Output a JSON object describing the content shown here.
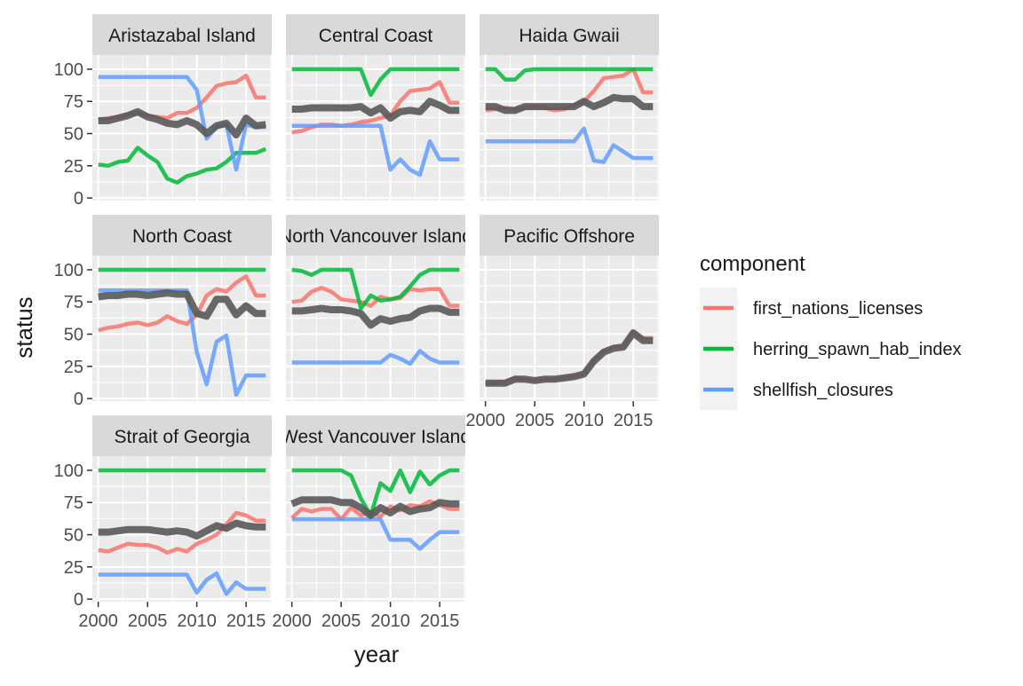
{
  "chart_data": {
    "type": "line",
    "xlabel": "year",
    "ylabel": "status",
    "xlim": [
      1999.4,
      2017.6
    ],
    "ylim": [
      -2,
      111
    ],
    "x_ticks": [
      2000,
      2005,
      2010,
      2015
    ],
    "y_ticks": [
      0,
      25,
      50,
      75,
      100
    ],
    "grid": true,
    "legend": {
      "title": "component",
      "position": "right",
      "entries": [
        {
          "label": "first_nations_licenses",
          "color": "#F8766D"
        },
        {
          "label": "herring_spawn_hab_index",
          "color": "#00BA38"
        },
        {
          "label": "shellfish_closures",
          "color": "#619CFF"
        }
      ]
    },
    "overall_color": "#595959",
    "colors": {
      "panel_bg": "#EBEBEB",
      "strip_bg": "#D9D9D9",
      "grid": "#FFFFFF",
      "text": "#1A1A1A",
      "tick_text": "#4D4D4D"
    },
    "x": [
      2000,
      2001,
      2002,
      2003,
      2004,
      2005,
      2006,
      2007,
      2008,
      2009,
      2010,
      2011,
      2012,
      2013,
      2014,
      2015,
      2016,
      2017
    ],
    "panels": [
      {
        "name": "Aristazabal Island",
        "series": {
          "first_nations_licenses": [
            61,
            62,
            63,
            65,
            66,
            64,
            63,
            62,
            66,
            66,
            70,
            78,
            87,
            89,
            90,
            95,
            78,
            78
          ],
          "herring_spawn_hab_index": [
            26,
            25,
            28,
            29,
            39,
            33,
            28,
            15,
            12,
            17,
            19,
            22,
            23,
            28,
            35,
            35,
            35,
            38
          ],
          "shellfish_closures": [
            94,
            94,
            94,
            94,
            94,
            94,
            94,
            94,
            94,
            94,
            84,
            46,
            55,
            57,
            22,
            57,
            55,
            55
          ],
          "overall": [
            60,
            60,
            62,
            64,
            67,
            63,
            61,
            58,
            57,
            60,
            57,
            50,
            56,
            58,
            49,
            62,
            56,
            57
          ]
        }
      },
      {
        "name": "Central Coast",
        "series": {
          "first_nations_licenses": [
            51,
            52,
            55,
            57,
            57,
            56,
            57,
            59,
            60,
            62,
            64,
            75,
            83,
            84,
            85,
            90,
            74,
            74
          ],
          "herring_spawn_hab_index": [
            100,
            100,
            100,
            100,
            100,
            100,
            100,
            100,
            80,
            92,
            100,
            100,
            100,
            100,
            100,
            100,
            100,
            100
          ],
          "shellfish_closures": [
            56,
            56,
            56,
            56,
            56,
            56,
            56,
            56,
            56,
            56,
            22,
            30,
            22,
            18,
            44,
            30,
            30,
            30
          ],
          "overall": [
            69,
            69,
            70,
            70,
            70,
            70,
            70,
            71,
            66,
            70,
            62,
            67,
            68,
            67,
            75,
            72,
            68,
            68
          ]
        }
      },
      {
        "name": "Haida Gwaii",
        "series": {
          "first_nations_licenses": [
            68,
            69,
            70,
            69,
            70,
            71,
            70,
            68,
            69,
            72,
            75,
            83,
            93,
            94,
            95,
            100,
            82,
            82
          ],
          "herring_spawn_hab_index": [
            100,
            100,
            92,
            92,
            99,
            100,
            100,
            100,
            100,
            100,
            100,
            100,
            100,
            100,
            100,
            100,
            100,
            100
          ],
          "shellfish_closures": [
            44,
            44,
            44,
            44,
            44,
            44,
            44,
            44,
            44,
            44,
            54,
            29,
            28,
            41,
            36,
            31,
            31,
            31
          ],
          "overall": [
            71,
            71,
            68,
            68,
            71,
            71,
            71,
            71,
            71,
            71,
            75,
            71,
            74,
            78,
            77,
            77,
            71,
            71
          ]
        }
      },
      {
        "name": "North Coast",
        "series": {
          "first_nations_licenses": [
            53,
            55,
            56,
            58,
            59,
            57,
            59,
            64,
            60,
            58,
            65,
            80,
            85,
            83,
            90,
            95,
            80,
            80
          ],
          "herring_spawn_hab_index": [
            100,
            100,
            100,
            100,
            100,
            100,
            100,
            100,
            100,
            100,
            100,
            100,
            100,
            100,
            100,
            100,
            100,
            100
          ],
          "shellfish_closures": [
            84,
            84,
            84,
            84,
            84,
            84,
            84,
            84,
            84,
            84,
            36,
            11,
            44,
            49,
            3,
            18,
            18,
            18
          ],
          "overall": [
            79,
            80,
            80,
            81,
            81,
            80,
            81,
            82,
            81,
            81,
            66,
            64,
            77,
            77,
            65,
            72,
            66,
            66
          ]
        }
      },
      {
        "name": "North Vancouver Island",
        "series": {
          "first_nations_licenses": [
            75,
            76,
            83,
            86,
            83,
            77,
            76,
            75,
            72,
            79,
            77,
            78,
            85,
            84,
            85,
            85,
            72,
            72
          ],
          "herring_spawn_hab_index": [
            100,
            99,
            96,
            100,
            100,
            100,
            100,
            70,
            80,
            76,
            77,
            79,
            87,
            96,
            100,
            100,
            100,
            100
          ],
          "shellfish_closures": [
            28,
            28,
            28,
            28,
            28,
            28,
            28,
            28,
            28,
            28,
            34,
            31,
            27,
            37,
            31,
            28,
            28,
            28
          ],
          "overall": [
            68,
            68,
            69,
            70,
            69,
            69,
            68,
            66,
            57,
            62,
            60,
            62,
            63,
            68,
            70,
            70,
            67,
            67
          ]
        }
      },
      {
        "name": "Pacific Offshore",
        "series": {
          "first_nations_licenses": [
            12,
            12,
            13,
            16,
            15,
            14,
            15,
            15,
            16,
            17,
            19,
            30,
            37,
            40,
            40,
            52,
            47,
            47
          ],
          "herring_spawn_hab_index": [],
          "shellfish_closures": [],
          "overall": [
            12,
            12,
            12,
            15,
            15,
            14,
            15,
            15,
            16,
            17,
            19,
            29,
            36,
            39,
            40,
            51,
            45,
            45
          ]
        }
      },
      {
        "name": "Strait of Georgia",
        "series": {
          "first_nations_licenses": [
            38,
            37,
            40,
            43,
            42,
            42,
            40,
            36,
            39,
            37,
            43,
            46,
            50,
            58,
            67,
            65,
            61,
            61
          ],
          "herring_spawn_hab_index": [
            100,
            100,
            100,
            100,
            100,
            100,
            100,
            100,
            100,
            100,
            100,
            100,
            100,
            100,
            100,
            100,
            100,
            100
          ],
          "shellfish_closures": [
            19,
            19,
            19,
            19,
            19,
            19,
            19,
            19,
            19,
            19,
            5,
            15,
            20,
            4,
            13,
            8,
            8,
            8
          ],
          "overall": [
            52,
            52,
            53,
            54,
            54,
            54,
            53,
            52,
            53,
            52,
            49,
            53,
            57,
            55,
            59,
            57,
            56,
            56
          ]
        }
      },
      {
        "name": "West Vancouver Island",
        "series": {
          "first_nations_licenses": [
            63,
            70,
            68,
            70,
            70,
            62,
            71,
            65,
            68,
            64,
            72,
            69,
            73,
            72,
            76,
            73,
            70,
            70
          ],
          "herring_spawn_hab_index": [
            100,
            100,
            100,
            100,
            100,
            100,
            96,
            78,
            65,
            90,
            84,
            100,
            83,
            99,
            89,
            96,
            100,
            100
          ],
          "shellfish_closures": [
            62,
            62,
            62,
            62,
            62,
            62,
            62,
            62,
            62,
            62,
            46,
            46,
            46,
            39,
            46,
            52,
            52,
            52
          ],
          "overall": [
            74,
            77,
            77,
            77,
            77,
            75,
            75,
            71,
            65,
            71,
            67,
            72,
            68,
            70,
            71,
            75,
            74,
            74
          ]
        }
      }
    ]
  }
}
